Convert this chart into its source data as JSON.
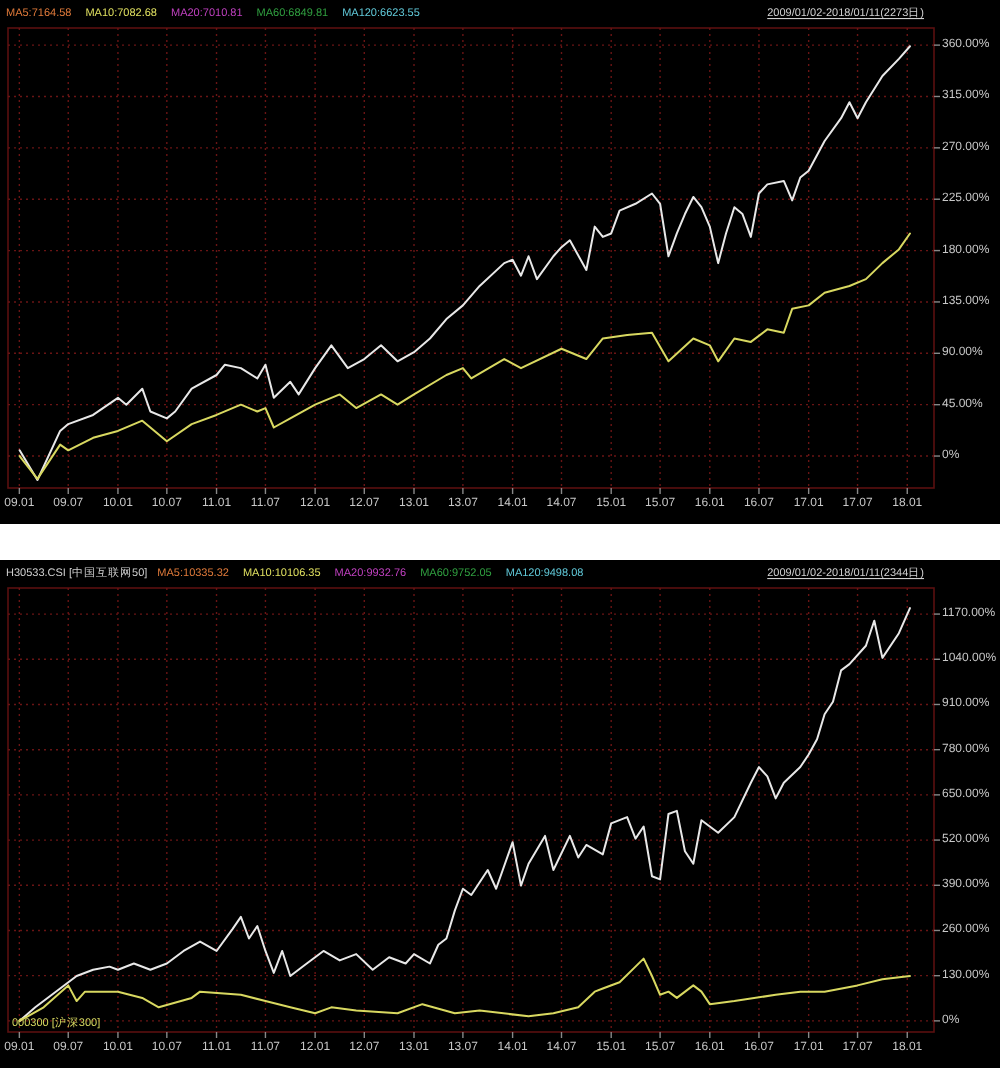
{
  "chart_data": [
    {
      "type": "line",
      "annotations": [
        "MA5:7164.58",
        "MA10:7082.68",
        "MA20:7010.81",
        "MA60:6849.81",
        "MA120:6623.55",
        "2009/01/02-2018/01/11(2273日)"
      ],
      "xlim": [
        "2008-11-20",
        "2018-04-10"
      ],
      "ylim": [
        -28,
        375
      ],
      "xticks": [
        {
          "value": "2009-01",
          "label": "09.01"
        },
        {
          "value": "2009-07",
          "label": "09.07"
        },
        {
          "value": "2010-01",
          "label": "10.01"
        },
        {
          "value": "2010-07",
          "label": "10.07"
        },
        {
          "value": "2011-01",
          "label": "11.01"
        },
        {
          "value": "2011-07",
          "label": "11.07"
        },
        {
          "value": "2012-01",
          "label": "12.01"
        },
        {
          "value": "2012-07",
          "label": "12.07"
        },
        {
          "value": "2013-01",
          "label": "13.01"
        },
        {
          "value": "2013-07",
          "label": "13.07"
        },
        {
          "value": "2014-01",
          "label": "14.01"
        },
        {
          "value": "2014-07",
          "label": "14.07"
        },
        {
          "value": "2015-01",
          "label": "15.01"
        },
        {
          "value": "2015-07",
          "label": "15.07"
        },
        {
          "value": "2016-01",
          "label": "16.01"
        },
        {
          "value": "2016-07",
          "label": "16.07"
        },
        {
          "value": "2017-01",
          "label": "17.01"
        },
        {
          "value": "2017-07",
          "label": "17.07"
        },
        {
          "value": "2018-01",
          "label": "18.01"
        }
      ],
      "yticks": [
        {
          "value": 0,
          "label": "0%"
        },
        {
          "value": 45,
          "label": "45.00%"
        },
        {
          "value": 90,
          "label": "90.00%"
        },
        {
          "value": 135,
          "label": "135.00%"
        },
        {
          "value": 180,
          "label": "180.00%"
        },
        {
          "value": 225,
          "label": "225.00%"
        },
        {
          "value": 270,
          "label": "270.00%"
        },
        {
          "value": 315,
          "label": "315.00%"
        },
        {
          "value": 360,
          "label": "360.00%"
        }
      ],
      "grid": true,
      "series": [
        {
          "color": "#e8e8e8",
          "x": [
            "2009-01-02",
            "2009-03-09",
            "2009-06",
            "2009-07",
            "2009-10",
            "2010-01",
            "2010-02",
            "2010-04",
            "2010-05",
            "2010-07",
            "2010-08",
            "2010-10",
            "2011-01",
            "2011-02",
            "2011-04",
            "2011-06",
            "2011-07",
            "2011-08",
            "2011-10",
            "2011-11",
            "2012-01",
            "2012-03",
            "2012-05",
            "2012-07",
            "2012-09",
            "2012-11",
            "2013-01",
            "2013-03",
            "2013-05",
            "2013-07",
            "2013-09",
            "2013-12",
            "2014-01",
            "2014-02",
            "2014-03",
            "2014-04",
            "2014-06",
            "2014-07",
            "2014-08",
            "2014-10",
            "2014-11",
            "2014-12",
            "2015-01",
            "2015-02",
            "2015-04",
            "2015-06",
            "2015-07",
            "2015-08",
            "2015-09",
            "2015-10",
            "2015-11",
            "2015-12",
            "2016-01",
            "2016-02",
            "2016-03",
            "2016-04",
            "2016-05",
            "2016-06",
            "2016-07",
            "2016-08",
            "2016-10",
            "2016-11",
            "2016-12",
            "2017-01",
            "2017-03",
            "2017-05",
            "2017-06",
            "2017-07",
            "2017-08",
            "2017-10",
            "2017-12",
            "2018-01-11"
          ],
          "values": [
            5,
            -21,
            22,
            28,
            36,
            51,
            45,
            59,
            39,
            33,
            39,
            59,
            71,
            80,
            77,
            68,
            80,
            51,
            65,
            54,
            77,
            97,
            77,
            85,
            97,
            83,
            91,
            103,
            120,
            132,
            149,
            169,
            172,
            158,
            175,
            155,
            175,
            183,
            189,
            163,
            201,
            192,
            195,
            215,
            221,
            230,
            221,
            175,
            195,
            212,
            227,
            218,
            201,
            169,
            195,
            218,
            212,
            192,
            230,
            238,
            241,
            224,
            244,
            250,
            276,
            296,
            310,
            296,
            310,
            333,
            348,
            359
          ]
        },
        {
          "color": "#d8d860",
          "x": [
            "2009-01-02",
            "2009-03-09",
            "2009-06",
            "2009-07",
            "2009-10",
            "2010-01",
            "2010-04",
            "2010-07",
            "2010-10",
            "2011-01",
            "2011-04",
            "2011-06",
            "2011-07",
            "2011-08",
            "2011-10",
            "2012-01",
            "2012-04",
            "2012-06",
            "2012-09",
            "2012-11",
            "2013-01",
            "2013-05",
            "2013-07",
            "2013-08",
            "2013-12",
            "2014-02",
            "2014-07",
            "2014-10",
            "2014-12",
            "2015-03",
            "2015-06",
            "2015-08",
            "2015-11",
            "2016-01",
            "2016-02",
            "2016-04",
            "2016-06",
            "2016-08",
            "2016-10",
            "2016-11",
            "2017-01",
            "2017-03",
            "2017-06",
            "2017-08",
            "2017-10",
            "2017-12",
            "2018-01-11"
          ],
          "values": [
            0,
            -20,
            10,
            5,
            16,
            22,
            31,
            13,
            28,
            36,
            45,
            39,
            42,
            25,
            33,
            45,
            54,
            42,
            54,
            45,
            54,
            71,
            77,
            68,
            85,
            77,
            94,
            85,
            103,
            106,
            108,
            83,
            103,
            97,
            83,
            103,
            100,
            111,
            108,
            129,
            132,
            143,
            149,
            155,
            169,
            181,
            195
          ]
        }
      ]
    },
    {
      "type": "line",
      "legend": "top left",
      "annotations": [
        "MA5:10335.32",
        "MA10:10106.35",
        "MA20:9932.76",
        "MA60:9752.05",
        "MA120:9498.08",
        "2009/01/02-2018/01/11(2344日)"
      ],
      "xlim": [
        "2008-11-20",
        "2018-04-10"
      ],
      "ylim": [
        -32,
        1245
      ],
      "xticks": [
        {
          "value": "2009-01",
          "label": "09.01"
        },
        {
          "value": "2009-07",
          "label": "09.07"
        },
        {
          "value": "2010-01",
          "label": "10.01"
        },
        {
          "value": "2010-07",
          "label": "10.07"
        },
        {
          "value": "2011-01",
          "label": "11.01"
        },
        {
          "value": "2011-07",
          "label": "11.07"
        },
        {
          "value": "2012-01",
          "label": "12.01"
        },
        {
          "value": "2012-07",
          "label": "12.07"
        },
        {
          "value": "2013-01",
          "label": "13.01"
        },
        {
          "value": "2013-07",
          "label": "13.07"
        },
        {
          "value": "2014-01",
          "label": "14.01"
        },
        {
          "value": "2014-07",
          "label": "14.07"
        },
        {
          "value": "2015-01",
          "label": "15.01"
        },
        {
          "value": "2015-07",
          "label": "15.07"
        },
        {
          "value": "2016-01",
          "label": "16.01"
        },
        {
          "value": "2016-07",
          "label": "16.07"
        },
        {
          "value": "2017-01",
          "label": "17.01"
        },
        {
          "value": "2017-07",
          "label": "17.07"
        },
        {
          "value": "2018-01",
          "label": "18.01"
        }
      ],
      "yticks": [
        {
          "value": 0,
          "label": "0%"
        },
        {
          "value": 130,
          "label": "130.00%"
        },
        {
          "value": 260,
          "label": "260.00%"
        },
        {
          "value": 390,
          "label": "390.00%"
        },
        {
          "value": 520,
          "label": "520.00%"
        },
        {
          "value": 650,
          "label": "650.00%"
        },
        {
          "value": 780,
          "label": "780.00%"
        },
        {
          "value": 910,
          "label": "910.00%"
        },
        {
          "value": 1040,
          "label": "1040.00%"
        },
        {
          "value": 1170,
          "label": "1170.00%"
        }
      ],
      "grid": true,
      "series": [
        {
          "name": "H30533.CSI [中国互联网50]",
          "color": "#e8e8e8",
          "x": [
            "2009-01-02",
            "2009-03",
            "2009-06",
            "2009-08",
            "2009-10",
            "2009-12",
            "2010-01",
            "2010-03",
            "2010-05",
            "2010-07",
            "2010-09",
            "2010-11",
            "2011-01",
            "2011-03",
            "2011-04",
            "2011-05",
            "2011-06",
            "2011-07",
            "2011-08",
            "2011-09",
            "2011-10",
            "2011-12",
            "2012-02",
            "2012-04",
            "2012-06",
            "2012-08",
            "2012-10",
            "2012-12",
            "2013-01",
            "2013-03",
            "2013-04",
            "2013-05",
            "2013-06",
            "2013-07",
            "2013-08",
            "2013-10",
            "2013-11",
            "2014-01",
            "2014-02",
            "2014-03",
            "2014-05",
            "2014-06",
            "2014-08",
            "2014-09",
            "2014-10",
            "2014-12",
            "2015-01",
            "2015-03",
            "2015-04",
            "2015-05",
            "2015-06",
            "2015-07",
            "2015-08",
            "2015-09",
            "2015-10",
            "2015-11",
            "2015-12",
            "2016-02",
            "2016-04",
            "2016-06",
            "2016-07",
            "2016-08",
            "2016-09",
            "2016-10",
            "2016-12",
            "2017-01",
            "2017-02",
            "2017-03",
            "2017-04",
            "2017-05",
            "2017-06",
            "2017-08",
            "2017-09",
            "2017-10",
            "2017-12",
            "2018-01-11"
          ],
          "values": [
            0,
            39,
            93,
            129,
            147,
            156,
            147,
            165,
            147,
            165,
            201,
            228,
            201,
            264,
            299,
            237,
            273,
            201,
            138,
            201,
            129,
            165,
            201,
            174,
            192,
            147,
            183,
            165,
            192,
            165,
            219,
            237,
            317,
            380,
            362,
            434,
            380,
            514,
            389,
            452,
            532,
            434,
            532,
            470,
            506,
            479,
            568,
            586,
            524,
            559,
            416,
            407,
            595,
            604,
            488,
            452,
            577,
            541,
            586,
            685,
            730,
            703,
            640,
            685,
            730,
            766,
            810,
            882,
            918,
            1008,
            1026,
            1079,
            1151,
            1044,
            1115,
            1187
          ]
        },
        {
          "name": "000300 [沪深300]",
          "color": "#d8d860",
          "x": [
            "2009-01-02",
            "2009-04",
            "2009-07",
            "2009-08",
            "2009-09",
            "2010-01",
            "2010-04",
            "2010-06",
            "2010-10",
            "2010-11",
            "2011-04",
            "2011-07",
            "2011-10",
            "2012-01",
            "2012-03",
            "2012-06",
            "2012-11",
            "2013-02",
            "2013-06",
            "2013-09",
            "2014-03",
            "2014-06",
            "2014-09",
            "2014-11",
            "2014-12",
            "2015-02",
            "2015-04",
            "2015-05",
            "2015-06",
            "2015-07",
            "2015-08",
            "2015-09",
            "2015-11",
            "2015-12",
            "2016-01",
            "2016-04",
            "2016-09",
            "2016-12",
            "2017-03",
            "2017-07",
            "2017-10",
            "2018-01-11"
          ],
          "values": [
            0,
            39,
            102,
            57,
            84,
            84,
            66,
            39,
            66,
            84,
            75,
            57,
            39,
            22,
            39,
            30,
            22,
            48,
            22,
            30,
            13,
            22,
            39,
            84,
            93,
            111,
            156,
            179,
            129,
            75,
            84,
            66,
            102,
            84,
            48,
            57,
            75,
            84,
            84,
            102,
            120,
            129
          ]
        }
      ]
    }
  ]
}
